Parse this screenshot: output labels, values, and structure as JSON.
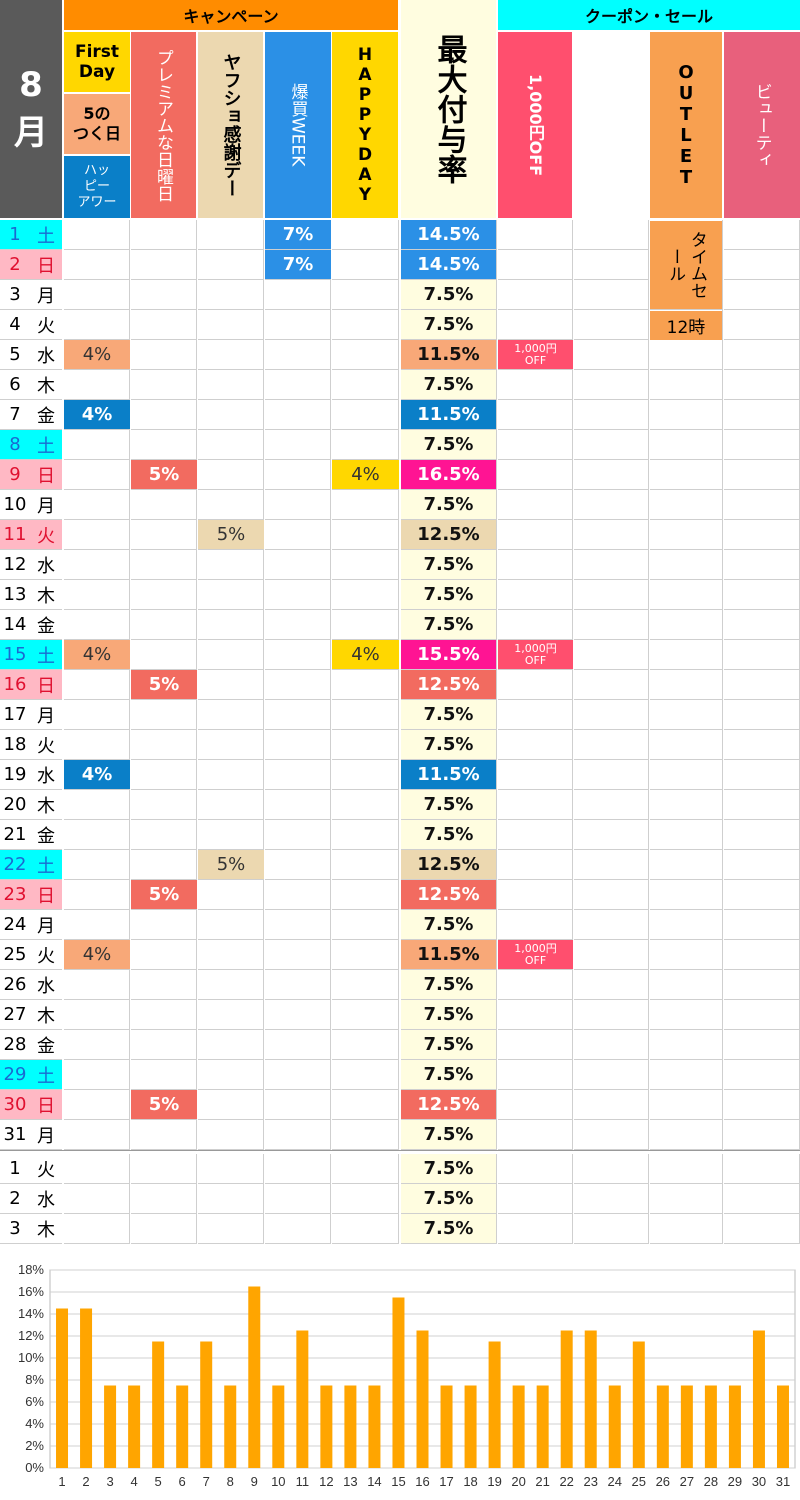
{
  "month": {
    "number": "8",
    "label": "月"
  },
  "groups": {
    "campaign": "キャンペーン",
    "coupon": "クーポン・セール"
  },
  "columns": {
    "firstday": "First Day",
    "gotsuku": "5の\nつく日",
    "happy_hour": "ハッ\nピー\nアワー",
    "premium": "プレミアムな日曜日",
    "yashoku": "ヤフショ感謝デー",
    "bakugai": "爆買WEEK",
    "happyday": "HAPPYDAY",
    "max_rate": "最大付与率",
    "yen1000": "1,000円OFF",
    "blank": "",
    "outlet": "OUTLET",
    "beauty": "ビューティ"
  },
  "timesale": {
    "label": "タイムセール",
    "time": "12時"
  },
  "coupon_cell": "1,000円\nOFF",
  "colors": {
    "month_bg": "#5a5a5a",
    "campaign": "#ff8c00",
    "coupon": "#00ffff",
    "firstday": "#ffd700",
    "gotsuku": "#f8a878",
    "happy_hour": "#0a7fc8",
    "premium": "#f26b60",
    "yashoku": "#ecd8b0",
    "bakugai": "#2b90e6",
    "happyday": "#ffd700",
    "max_rate": "#fffde0",
    "yen1000": "#ff4f6e",
    "outlet": "#f8a050",
    "beauty": "#e8607c",
    "saturday": "#00ffff",
    "sunday": "#ffb8c4",
    "peak": "#ff1493",
    "bar": "#ffa500"
  },
  "rows": [
    {
      "d": "1",
      "w": "土",
      "t": "sat",
      "bk": "7%",
      "max": "14.5%",
      "mc": "bakugai"
    },
    {
      "d": "2",
      "w": "日",
      "t": "sun",
      "bk": "7%",
      "max": "14.5%",
      "mc": "bakugai"
    },
    {
      "d": "3",
      "w": "月",
      "max": "7.5%"
    },
    {
      "d": "4",
      "w": "火",
      "max": "7.5%"
    },
    {
      "d": "5",
      "w": "水",
      "gt": "4%",
      "max": "11.5%",
      "mc": "gotsuku",
      "cp": true
    },
    {
      "d": "6",
      "w": "木",
      "max": "7.5%"
    },
    {
      "d": "7",
      "w": "金",
      "hh": "4%",
      "max": "11.5%",
      "mc": "happy_hour"
    },
    {
      "d": "8",
      "w": "土",
      "t": "sat",
      "max": "7.5%"
    },
    {
      "d": "9",
      "w": "日",
      "t": "sun",
      "pr": "5%",
      "hd": "4%",
      "max": "16.5%",
      "mc": "peak"
    },
    {
      "d": "10",
      "w": "月",
      "max": "7.5%"
    },
    {
      "d": "11",
      "w": "火",
      "t": "sun",
      "ya": "5%",
      "max": "12.5%",
      "mc": "yashoku"
    },
    {
      "d": "12",
      "w": "水",
      "max": "7.5%"
    },
    {
      "d": "13",
      "w": "木",
      "max": "7.5%"
    },
    {
      "d": "14",
      "w": "金",
      "max": "7.5%"
    },
    {
      "d": "15",
      "w": "土",
      "t": "sat",
      "gt": "4%",
      "hd": "4%",
      "max": "15.5%",
      "mc": "peak",
      "cp": true
    },
    {
      "d": "16",
      "w": "日",
      "t": "sun",
      "pr": "5%",
      "max": "12.5%",
      "mc": "premium"
    },
    {
      "d": "17",
      "w": "月",
      "max": "7.5%"
    },
    {
      "d": "18",
      "w": "火",
      "max": "7.5%"
    },
    {
      "d": "19",
      "w": "水",
      "hh": "4%",
      "max": "11.5%",
      "mc": "happy_hour"
    },
    {
      "d": "20",
      "w": "木",
      "max": "7.5%"
    },
    {
      "d": "21",
      "w": "金",
      "max": "7.5%"
    },
    {
      "d": "22",
      "w": "土",
      "t": "sat",
      "ya": "5%",
      "max": "12.5%",
      "mc": "yashoku"
    },
    {
      "d": "23",
      "w": "日",
      "t": "sun",
      "pr": "5%",
      "max": "12.5%",
      "mc": "premium"
    },
    {
      "d": "24",
      "w": "月",
      "max": "7.5%"
    },
    {
      "d": "25",
      "w": "火",
      "gt": "4%",
      "max": "11.5%",
      "mc": "gotsuku",
      "cp": true
    },
    {
      "d": "26",
      "w": "水",
      "max": "7.5%"
    },
    {
      "d": "27",
      "w": "木",
      "max": "7.5%"
    },
    {
      "d": "28",
      "w": "金",
      "max": "7.5%"
    },
    {
      "d": "29",
      "w": "土",
      "t": "sat",
      "max": "7.5%"
    },
    {
      "d": "30",
      "w": "日",
      "t": "sun",
      "pr": "5%",
      "max": "12.5%",
      "mc": "premium"
    },
    {
      "d": "31",
      "w": "月",
      "max": "7.5%"
    }
  ],
  "next_rows": [
    {
      "d": "1",
      "w": "火",
      "max": "7.5%"
    },
    {
      "d": "2",
      "w": "水",
      "max": "7.5%"
    },
    {
      "d": "3",
      "w": "木",
      "max": "7.5%"
    }
  ],
  "chart_data": {
    "type": "bar",
    "categories": [
      "1",
      "2",
      "3",
      "4",
      "5",
      "6",
      "7",
      "8",
      "9",
      "10",
      "11",
      "12",
      "13",
      "14",
      "15",
      "16",
      "17",
      "18",
      "19",
      "20",
      "21",
      "22",
      "23",
      "24",
      "25",
      "26",
      "27",
      "28",
      "29",
      "30",
      "31"
    ],
    "values": [
      14.5,
      14.5,
      7.5,
      7.5,
      11.5,
      7.5,
      11.5,
      7.5,
      16.5,
      7.5,
      12.5,
      7.5,
      7.5,
      7.5,
      15.5,
      12.5,
      7.5,
      7.5,
      11.5,
      7.5,
      7.5,
      12.5,
      12.5,
      7.5,
      11.5,
      7.5,
      7.5,
      7.5,
      7.5,
      12.5,
      7.5
    ],
    "ylim": [
      0,
      18
    ],
    "yticks": [
      "0%",
      "2%",
      "4%",
      "6%",
      "8%",
      "10%",
      "12%",
      "14%",
      "16%",
      "18%"
    ],
    "grid": true,
    "title": "",
    "xlabel": "",
    "ylabel": ""
  }
}
